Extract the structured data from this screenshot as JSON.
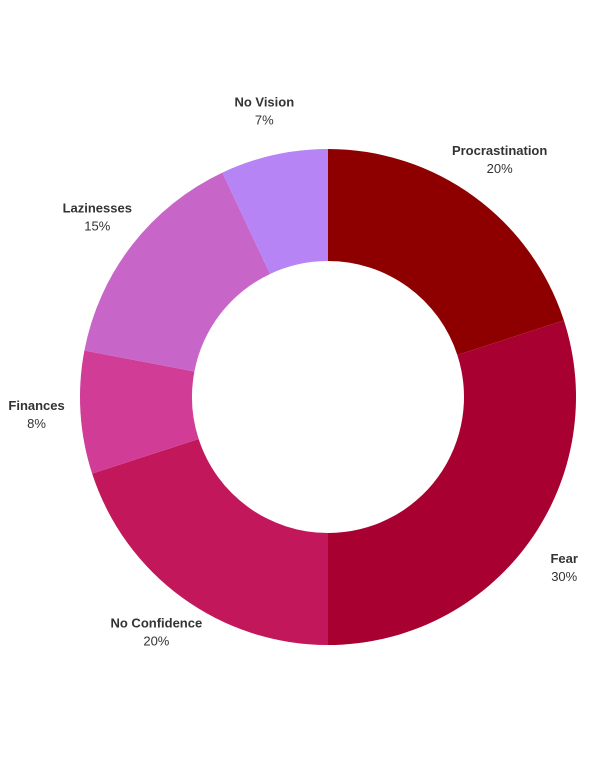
{
  "chart_data": {
    "type": "donut",
    "categories": [
      "Procrastination",
      "Fear",
      "No Confidence",
      "Finances",
      "Lazinesses",
      "No Vision"
    ],
    "values": [
      20,
      30,
      20,
      8,
      15,
      7
    ],
    "value_labels": [
      "20%",
      "30%",
      "20%",
      "8%",
      "15%",
      "7%"
    ],
    "colors": [
      "#8e0000",
      "#a80030",
      "#c2185b",
      "#d03c96",
      "#c765c9",
      "#b784f5"
    ]
  }
}
